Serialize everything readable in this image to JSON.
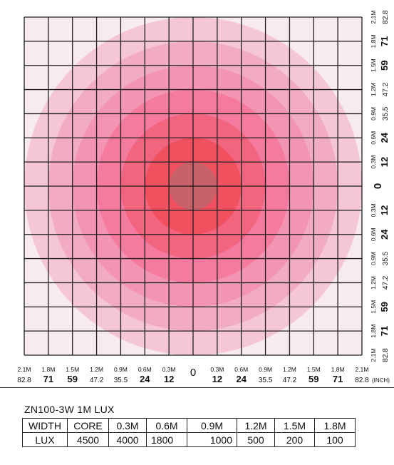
{
  "beam_chart": {
    "rings": [
      {
        "radius_m": 2.1,
        "color": "#f4c6d7"
      },
      {
        "radius_m": 1.8,
        "color": "#f2abc4"
      },
      {
        "radius_m": 1.5,
        "color": "#f394b3"
      },
      {
        "radius_m": 1.2,
        "color": "#f47b9f"
      },
      {
        "radius_m": 0.9,
        "color": "#f3647f"
      },
      {
        "radius_m": 0.6,
        "color": "#f1505f"
      },
      {
        "radius_m": 0.3,
        "color": "#c9616b"
      }
    ],
    "distances": [
      {
        "m": "2.1M",
        "inch": "82.8"
      },
      {
        "m": "1.8M",
        "inch": "71"
      },
      {
        "m": "1.5M",
        "inch": "59"
      },
      {
        "m": "1.2M",
        "inch": "47.2"
      },
      {
        "m": "0.9M",
        "inch": "35.5"
      },
      {
        "m": "0.6M",
        "inch": "24"
      },
      {
        "m": "0.3M",
        "inch": "12"
      }
    ],
    "center_label": "0",
    "unit_label": "(INCH)"
  },
  "caption": "ZN100-3W  1M  LUX",
  "lux_table": {
    "row1": [
      "WIDTH",
      "CORE",
      "0.3M",
      "0.6M",
      "0.9M",
      "1.2M",
      "1.5M",
      "1.8M"
    ],
    "row2": [
      "LUX",
      "4500",
      "4000",
      "1800",
      "1000",
      "500",
      "200",
      "100"
    ]
  }
}
